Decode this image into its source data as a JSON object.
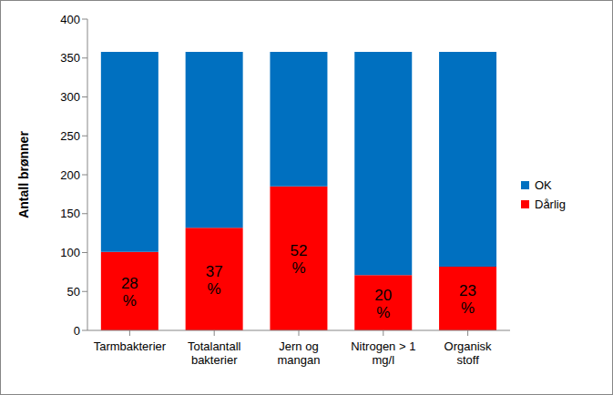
{
  "chart_data": {
    "type": "bar",
    "stacked": true,
    "y_label": "Antall brønner",
    "categories": [
      "Tarmbakterier",
      "Totalantall bakterier",
      "Jern og mangan",
      "Nitrogen > 1 mg/l",
      "Organisk stoff"
    ],
    "series": [
      {
        "name": "OK",
        "color": "#0070c0",
        "values": [
          257,
          226,
          173,
          287,
          276
        ]
      },
      {
        "name": "Dårlig",
        "color": "#ff0000",
        "values": [
          101,
          132,
          185,
          71,
          82
        ],
        "percent_labels": [
          "28 %",
          "37 %",
          "52 %",
          "20 %",
          "23 %"
        ]
      }
    ],
    "ylim": [
      0,
      400
    ],
    "yticks": [
      0,
      50,
      100,
      150,
      200,
      250,
      300,
      350,
      400
    ],
    "grid": false,
    "legend": "right"
  }
}
